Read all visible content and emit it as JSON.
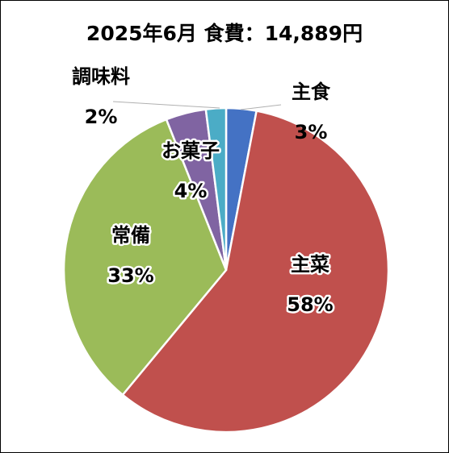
{
  "chart_data": {
    "type": "pie",
    "title": "2025年6月 食費：14,889円",
    "slices": [
      {
        "label": "主食",
        "value": 3,
        "pct": "3%",
        "color": "#4472C4"
      },
      {
        "label": "主菜",
        "value": 58,
        "pct": "58%",
        "color": "#C0504D"
      },
      {
        "label": "常備",
        "value": 33,
        "pct": "33%",
        "color": "#9BBB59"
      },
      {
        "label": "お菓子",
        "value": 4,
        "pct": "4%",
        "color": "#8064A2"
      },
      {
        "label": "調味料",
        "value": 2,
        "pct": "2%",
        "color": "#4BACC6"
      }
    ],
    "legend": "none",
    "data_labels": "category and percentage"
  }
}
